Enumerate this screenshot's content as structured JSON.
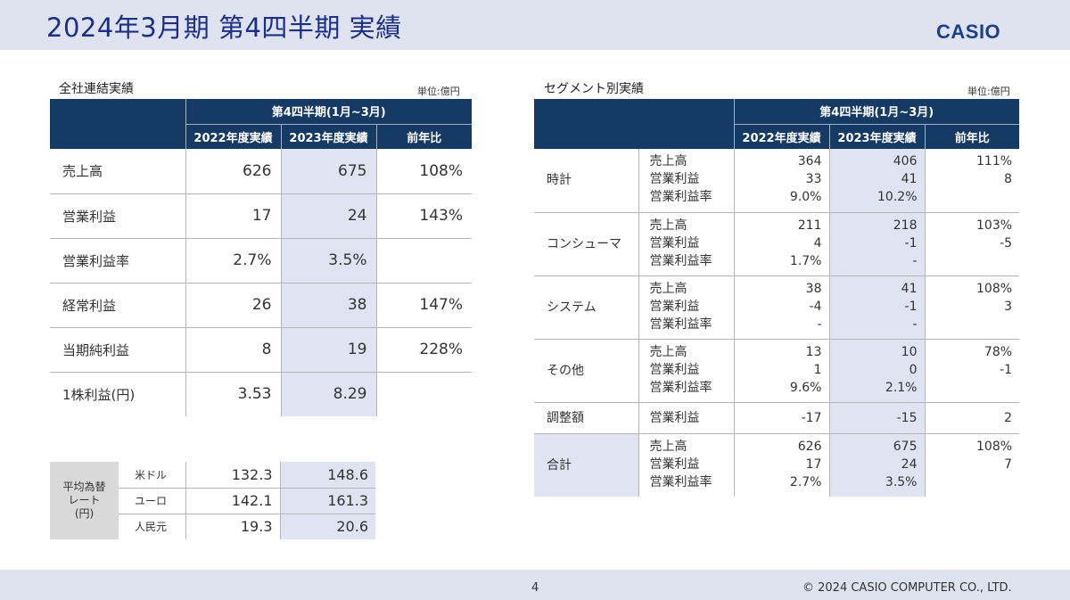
{
  "header": {
    "title": "2024年3月期 第4四半期 実績",
    "logo": "CASIO"
  },
  "footer": {
    "page": "4",
    "copyright": "© 2024 CASIO COMPUTER CO., LTD."
  },
  "consolidated": {
    "title": "全社連結実績",
    "unit": "単位:億円",
    "period_header": "第4四半期(1月~3月)",
    "columns": [
      "2022年度実績",
      "2023年度実績",
      "前年比"
    ],
    "rows": [
      {
        "label": "売上高",
        "prev": "626",
        "curr": "675",
        "yoy": "108%"
      },
      {
        "label": "営業利益",
        "prev": "17",
        "curr": "24",
        "yoy": "143%"
      },
      {
        "label": "営業利益率",
        "prev": "2.7%",
        "curr": "3.5%",
        "yoy": ""
      },
      {
        "label": "経常利益",
        "prev": "26",
        "curr": "38",
        "yoy": "147%"
      },
      {
        "label": "当期純利益",
        "prev": "8",
        "curr": "19",
        "yoy": "228%"
      },
      {
        "label": "1株利益(円)",
        "prev": "3.53",
        "curr": "8.29",
        "yoy": ""
      }
    ]
  },
  "fx": {
    "header_lines": [
      "平均為替",
      "レート",
      "(円)"
    ],
    "rows": [
      {
        "currency": "米ドル",
        "prev": "132.3",
        "curr": "148.6"
      },
      {
        "currency": "ユーロ",
        "prev": "142.1",
        "curr": "161.3"
      },
      {
        "currency": "人民元",
        "prev": "19.3",
        "curr": "20.6"
      }
    ]
  },
  "segments": {
    "title": "セグメント別実績",
    "unit": "単位:億円",
    "period_header": "第4四半期(1月~3月)",
    "columns": [
      "2022年度実績",
      "2023年度実績",
      "前年比"
    ],
    "items": [
      "売上高",
      "営業利益",
      "営業利益率"
    ],
    "rows": [
      {
        "name": "時計",
        "prev": [
          "364",
          "33",
          "9.0%"
        ],
        "curr": [
          "406",
          "41",
          "10.2%"
        ],
        "yoy": [
          "111%",
          "8",
          ""
        ]
      },
      {
        "name": "コンシューマ",
        "prev": [
          "211",
          "4",
          "1.7%"
        ],
        "curr": [
          "218",
          "-1",
          "-"
        ],
        "yoy": [
          "103%",
          "-5",
          ""
        ]
      },
      {
        "name": "システム",
        "prev": [
          "38",
          "-4",
          "-"
        ],
        "curr": [
          "41",
          "-1",
          "-"
        ],
        "yoy": [
          "108%",
          "3",
          ""
        ]
      },
      {
        "name": "その他",
        "prev": [
          "13",
          "1",
          "9.6%"
        ],
        "curr": [
          "10",
          "0",
          "2.1%"
        ],
        "yoy": [
          "78%",
          "-1",
          ""
        ]
      }
    ],
    "adjustment": {
      "name": "調整額",
      "item": "営業利益",
      "prev": "-17",
      "curr": "-15",
      "yoy": "2"
    },
    "total": {
      "name": "合計",
      "prev": [
        "626",
        "17",
        "2.7%"
      ],
      "curr": [
        "675",
        "24",
        "3.5%"
      ],
      "yoy": [
        "108%",
        "7",
        ""
      ]
    }
  }
}
